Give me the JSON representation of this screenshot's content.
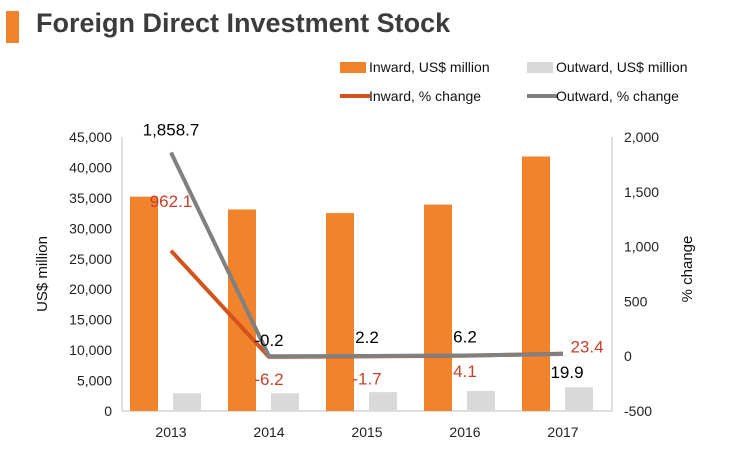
{
  "header": {
    "title": "Foreign Direct Investment Stock"
  },
  "colors": {
    "accent": "#f0832b",
    "inward": "#f0832b",
    "outward": "#d9d9d9",
    "inward_line": "#d4531d",
    "outward_line": "#808080",
    "inward_label": "#c8402a",
    "outward_label": "#000000"
  },
  "chart_data": {
    "type": "bar",
    "title": "Foreign Direct Investment Stock",
    "categories": [
      "2013",
      "2014",
      "2015",
      "2016",
      "2017"
    ],
    "series": [
      {
        "name": "Inward, US$ million",
        "kind": "bar",
        "axis": "left",
        "values": [
          35200,
          33100,
          32500,
          33900,
          41800
        ]
      },
      {
        "name": "Outward, US$ million",
        "kind": "bar",
        "axis": "left",
        "values": [
          2900,
          2900,
          3100,
          3300,
          3900
        ]
      },
      {
        "name": "Inward, % change",
        "kind": "line",
        "axis": "right",
        "values": [
          962.1,
          -6.2,
          -1.7,
          4.1,
          23.4
        ],
        "labels": [
          "962.1",
          "-6.2",
          "-1.7",
          "4.1",
          "23.4"
        ]
      },
      {
        "name": "Outward, % change",
        "kind": "line",
        "axis": "right",
        "values": [
          1858.7,
          -0.2,
          2.2,
          6.2,
          19.9
        ],
        "labels": [
          "1,858.7",
          "-0.2",
          "2.2",
          "6.2",
          "19.9"
        ]
      }
    ],
    "ylabel": "US$ million",
    "ylim": [
      0,
      45000
    ],
    "yticks": [
      "0",
      "5,000",
      "10,000",
      "15,000",
      "20,000",
      "25,000",
      "30,000",
      "35,000",
      "40,000",
      "45,000"
    ],
    "y2label": "% change",
    "y2lim": [
      -500,
      2000
    ],
    "y2ticks": [
      "-500",
      "0",
      "500",
      "1,000",
      "1,500",
      "2,000"
    ],
    "legend_position": "top-right",
    "grid": false
  }
}
